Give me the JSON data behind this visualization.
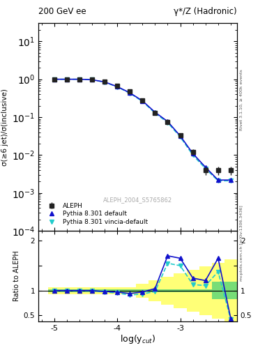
{
  "title_left": "200 GeV ee",
  "title_right": "γ*/Z (Hadronic)",
  "ylabel_main": "σ(≥6 jet)/σ(inclusive)",
  "ylabel_ratio": "Ratio to ALEPH",
  "xlabel": "log(y$_{cut}$)",
  "right_label_top": "Rivet 3.1.10, ≥ 400k events",
  "right_label_bot": "mcplots.cern.ch [arXiv:1306.3436]",
  "watermark": "ALEPH_2004_S5765862",
  "xcut": [
    -5.0,
    -4.8,
    -4.6,
    -4.4,
    -4.2,
    -4.0,
    -3.8,
    -3.6,
    -3.4,
    -3.2,
    -3.0,
    -2.8,
    -2.6,
    -2.4,
    -2.2
  ],
  "aleph_y": [
    1.0,
    1.0,
    1.0,
    0.97,
    0.87,
    0.66,
    0.47,
    0.28,
    0.13,
    0.075,
    0.033,
    0.012,
    0.004,
    0.004,
    0.004
  ],
  "aleph_yerr": [
    0.01,
    0.01,
    0.01,
    0.01,
    0.02,
    0.03,
    0.03,
    0.02,
    0.015,
    0.008,
    0.004,
    0.002,
    0.001,
    0.001,
    0.001
  ],
  "pythia_default_y": [
    1.0,
    1.0,
    1.0,
    0.97,
    0.85,
    0.64,
    0.44,
    0.27,
    0.135,
    0.077,
    0.032,
    0.011,
    0.0048,
    0.0022,
    0.0022
  ],
  "pythia_vincia_y": [
    1.0,
    1.0,
    1.0,
    0.97,
    0.84,
    0.63,
    0.43,
    0.26,
    0.128,
    0.072,
    0.03,
    0.01,
    0.0044,
    0.0021,
    0.0021
  ],
  "ratio_default": [
    1.0,
    1.0,
    1.0,
    1.0,
    0.98,
    0.97,
    0.94,
    0.97,
    1.04,
    1.7,
    1.65,
    1.25,
    1.2,
    1.65,
    0.44
  ],
  "ratio_vincia": [
    1.0,
    1.0,
    1.0,
    1.0,
    0.97,
    0.95,
    0.91,
    0.93,
    0.98,
    1.55,
    1.5,
    1.12,
    1.1,
    1.38,
    0.42
  ],
  "green_band_lo": [
    0.97,
    0.97,
    0.97,
    0.97,
    0.97,
    0.97,
    0.97,
    0.97,
    0.97,
    0.97,
    0.97,
    0.97,
    0.97,
    0.82,
    0.82
  ],
  "green_band_hi": [
    1.03,
    1.03,
    1.03,
    1.03,
    1.03,
    1.03,
    1.03,
    1.03,
    1.03,
    1.03,
    1.03,
    1.03,
    1.03,
    1.18,
    1.18
  ],
  "yellow_band_lo": [
    0.93,
    0.93,
    0.93,
    0.93,
    0.93,
    0.93,
    0.93,
    0.86,
    0.79,
    0.72,
    0.65,
    0.58,
    0.51,
    0.44,
    0.37
  ],
  "yellow_band_hi": [
    1.07,
    1.07,
    1.07,
    1.07,
    1.07,
    1.07,
    1.07,
    1.14,
    1.21,
    1.28,
    1.35,
    1.42,
    1.49,
    1.56,
    1.63
  ],
  "aleph_color": "#222222",
  "pythia_default_color": "#1111cc",
  "pythia_vincia_color": "#22cccc",
  "green_color": "#77dd77",
  "yellow_color": "#ffff77",
  "xlim": [
    -5.25,
    -2.1
  ],
  "ylim_ratio": [
    0.38,
    2.2
  ]
}
